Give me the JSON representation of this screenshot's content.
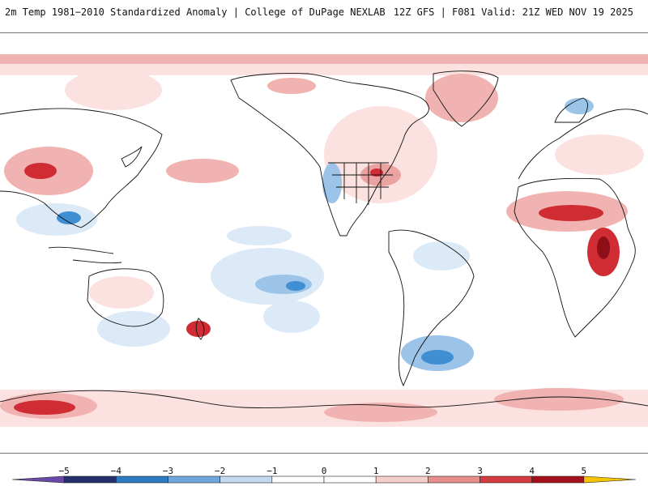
{
  "header": {
    "left_title": "2m Temp 1981−2010 Standardized Anomaly | College of DuPage NEXLAB",
    "right_title": "12Z GFS | F081 Valid: 21Z WED NOV 19 2025"
  },
  "legend": {
    "ticks": [
      "−5",
      "−4",
      "−3",
      "−2",
      "−1",
      "0",
      "1",
      "2",
      "3",
      "4",
      "5"
    ],
    "colors": [
      "#5a3d9a",
      "#2b3a7a",
      "#2f7bbf",
      "#7fb4e0",
      "#c9ddf0",
      "#ffffff",
      "#f6d0cf",
      "#eba3a1",
      "#d64545",
      "#a3101a",
      "#f2c200"
    ]
  },
  "colors": {
    "land_line": "#111111",
    "neg_light": "#dce9f6",
    "neg_mid": "#9cc3e8",
    "neg_strong": "#3f8fd2",
    "pos_light": "#fbe1e0",
    "pos_mid": "#f0b3b1",
    "pos_strong": "#cf2c34",
    "pos_dark": "#8e0f18"
  }
}
